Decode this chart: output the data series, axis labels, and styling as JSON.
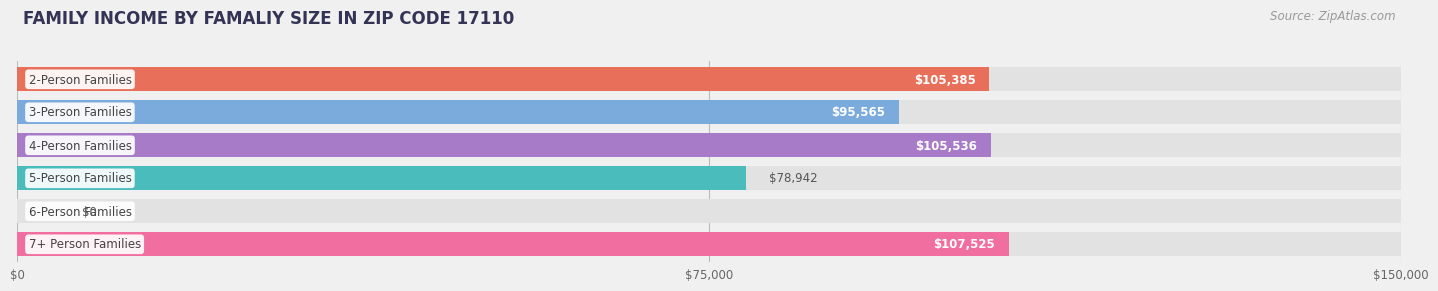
{
  "title": "FAMILY INCOME BY FAMALIY SIZE IN ZIP CODE 17110",
  "source": "Source: ZipAtlas.com",
  "categories": [
    "2-Person Families",
    "3-Person Families",
    "4-Person Families",
    "5-Person Families",
    "6-Person Families",
    "7+ Person Families"
  ],
  "values": [
    105385,
    95565,
    105536,
    78942,
    0,
    107525
  ],
  "bar_colors": [
    "#E8705A",
    "#7AABDC",
    "#A87BC8",
    "#4BBCBC",
    "#AABCEF",
    "#F06FA0"
  ],
  "label_inside": [
    true,
    true,
    true,
    false,
    false,
    true
  ],
  "xlim": [
    0,
    150000
  ],
  "xtick_labels": [
    "$0",
    "$75,000",
    "$150,000"
  ],
  "bg_color": "#f0f0f0",
  "bar_bg_color": "#e2e2e2",
  "title_color": "#333355",
  "title_fontsize": 12,
  "bar_height": 0.72,
  "value_label_fontsize": 8.5,
  "category_fontsize": 8.5,
  "source_fontsize": 8.5
}
